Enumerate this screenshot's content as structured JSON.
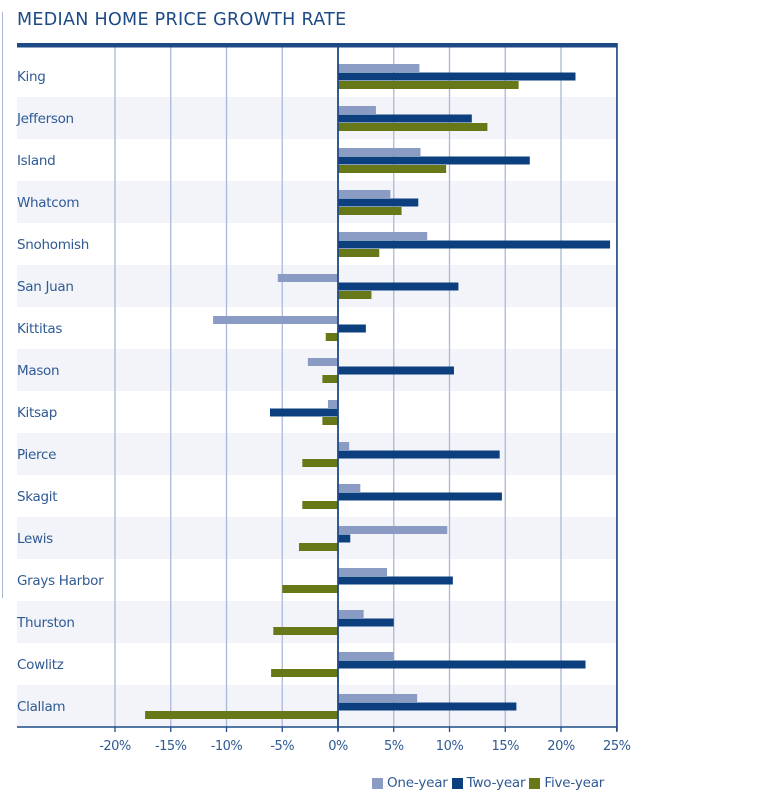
{
  "chart_data": {
    "type": "bar",
    "orientation": "horizontal",
    "title": "MEDIAN HOME PRICE GROWTH RATE",
    "xlabel": "",
    "ylabel": "",
    "xlim": [
      -20,
      25
    ],
    "x_ticks": [
      -20,
      -15,
      -10,
      -5,
      0,
      5,
      10,
      15,
      20,
      25
    ],
    "x_tick_labels": [
      "-20%",
      "-15%",
      "-10%",
      "-5%",
      "0%",
      "5%",
      "10%",
      "15%",
      "20%",
      "25%"
    ],
    "grid": true,
    "legend_position": "bottom-right",
    "categories": [
      "King",
      "Jefferson",
      "Island",
      "Whatcom",
      "Snohomish",
      "San Juan",
      "Kittitas",
      "Mason",
      "Kitsap",
      "Pierce",
      "Skagit",
      "Lewis",
      "Grays Harbor",
      "Thurston",
      "Cowlitz",
      "Clallam"
    ],
    "series": [
      {
        "name": "One-year",
        "color": "#8a9bc4",
        "values": [
          7.3,
          3.4,
          7.4,
          4.7,
          8.0,
          -5.4,
          -11.2,
          -2.7,
          -0.9,
          1.0,
          2.0,
          9.8,
          4.4,
          2.3,
          5.0,
          7.1
        ]
      },
      {
        "name": "Two-year",
        "color": "#0b3f7e",
        "values": [
          21.3,
          12.0,
          17.2,
          7.2,
          24.4,
          10.8,
          2.5,
          10.4,
          -6.1,
          14.5,
          14.7,
          1.1,
          10.3,
          5.0,
          22.2,
          16.0
        ]
      },
      {
        "name": "Five-year",
        "color": "#667818",
        "values": [
          16.2,
          13.4,
          9.7,
          5.7,
          3.7,
          3.0,
          -1.1,
          -1.4,
          -1.4,
          -3.2,
          -3.2,
          -3.5,
          -5.0,
          -5.8,
          -6.0,
          -17.3
        ]
      }
    ]
  },
  "colors": {
    "title": "#1d4a86",
    "axis": "#1d4a86",
    "grid": "#aab8d6",
    "band": "#f2f4f9",
    "label": "#2f5a93"
  }
}
